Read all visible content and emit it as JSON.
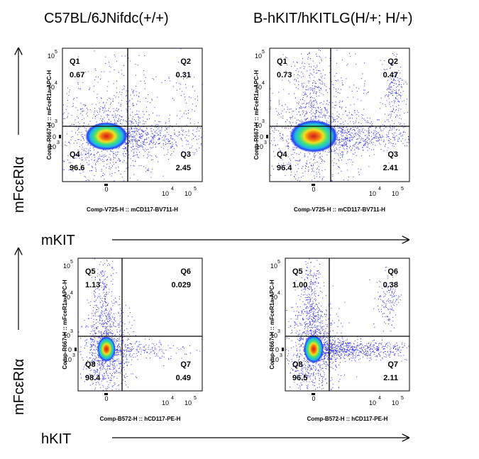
{
  "titles": {
    "left": "C57BL/6JNifdc(+/+)",
    "right": "B-hKIT/hKITLG(H/+; H/+)"
  },
  "row_labels": {
    "top_y": "mFcεRIα",
    "bottom_y": "mFcεRIα",
    "top_x": "mKIT",
    "bottom_x": "hKIT"
  },
  "panels": [
    {
      "id": "top-left",
      "xlabel": "Comp-V725-H :: mCD117-BV711-H",
      "ylabel": "Comp-R667-H :: mFceR1a-APC-H",
      "quadrants": [
        {
          "name": "Q1",
          "value": "0.67"
        },
        {
          "name": "Q2",
          "value": "0.31"
        },
        {
          "name": "Q4",
          "value": "96.6"
        },
        {
          "name": "Q3",
          "value": "2.45"
        }
      ]
    },
    {
      "id": "top-right",
      "xlabel": "Comp-V725-H :: mCD117-BV711-H",
      "ylabel": "Comp-R667-H :: mFceR1a-APC-H",
      "quadrants": [
        {
          "name": "Q1",
          "value": "0.73"
        },
        {
          "name": "Q2",
          "value": "0.47"
        },
        {
          "name": "Q4",
          "value": "96.4"
        },
        {
          "name": "Q3",
          "value": "2.41"
        }
      ]
    },
    {
      "id": "bottom-left",
      "xlabel": "Comp-B572-H :: hCD117-PE-H",
      "ylabel": "Comp-R667-H :: mFceR1a-APC-H",
      "quadrants": [
        {
          "name": "Q5",
          "value": "1.13"
        },
        {
          "name": "Q6",
          "value": "0.029"
        },
        {
          "name": "Q8",
          "value": "98.4"
        },
        {
          "name": "Q7",
          "value": "0.49"
        }
      ]
    },
    {
      "id": "bottom-right",
      "xlabel": "Comp-B572-H :: hCD117-PE-H",
      "ylabel": "Comp-R667-H :: mFceR1a-APC-H",
      "quadrants": [
        {
          "name": "Q5",
          "value": "1.00"
        },
        {
          "name": "Q6",
          "value": "0.38"
        },
        {
          "name": "Q8",
          "value": "96.5"
        },
        {
          "name": "Q7",
          "value": "2.11"
        }
      ]
    }
  ],
  "ticks": {
    "zero": "0",
    "neg": "-10",
    "ten": "10",
    "exp3": "3",
    "exp4": "4",
    "exp5": "5"
  },
  "colors": {
    "dots": "#2a2af0",
    "density_core": "#e8201a",
    "density_mid": "#f0e020",
    "density_outer": "#20c0e0"
  }
}
